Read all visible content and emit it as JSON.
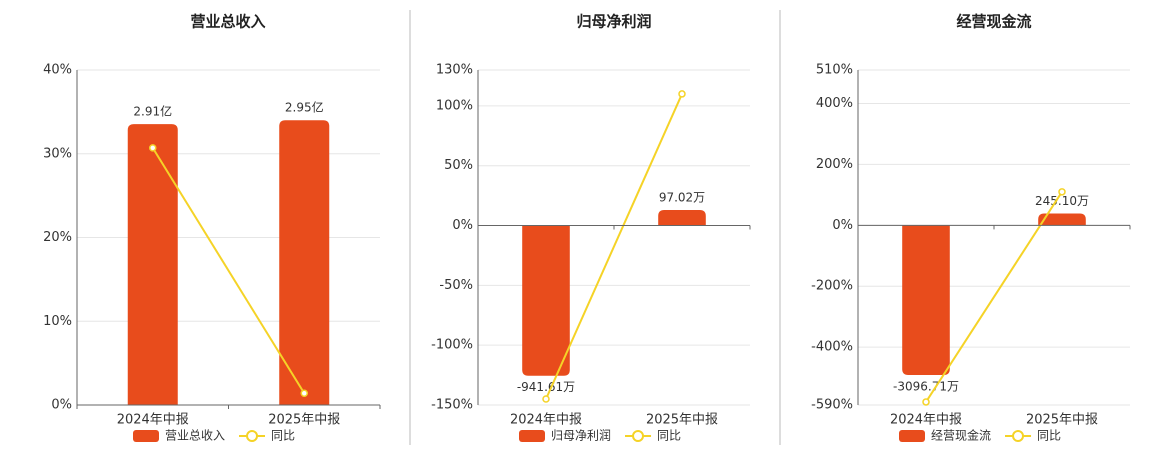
{
  "chart_data": [
    {
      "type": "bar",
      "title": "营业总收入",
      "categories": [
        "2024年中报",
        "2025年中报"
      ],
      "series": [
        {
          "name": "营业总收入",
          "color": "#e84c1c",
          "axis": "y2",
          "values": [
            2.91,
            2.95
          ],
          "value_labels": [
            "2.91亿",
            "2.95亿"
          ]
        },
        {
          "name": "同比",
          "type": "line",
          "color": "#f5d327",
          "values": [
            30.7,
            1.4
          ]
        }
      ],
      "ylim": [
        0,
        40
      ],
      "yticks": [
        {
          "value": 0,
          "label": "0%"
        },
        {
          "value": 10,
          "label": "10%"
        },
        {
          "value": 20,
          "label": "20%"
        },
        {
          "value": 30,
          "label": "30%"
        },
        {
          "value": 40,
          "label": "40%"
        }
      ],
      "y2lim": [
        0,
        3.47
      ],
      "grid": true
    },
    {
      "type": "bar",
      "title": "归母净利润",
      "categories": [
        "2024年中报",
        "2025年中报"
      ],
      "series": [
        {
          "name": "归母净利润",
          "color": "#e84c1c",
          "axis": "y2",
          "values": [
            -941.61,
            97.02
          ],
          "value_labels": [
            "-941.61万",
            "97.02万"
          ]
        },
        {
          "name": "同比",
          "type": "line",
          "color": "#f5d327",
          "values": [
            -145,
            110
          ]
        }
      ],
      "ylim": [
        -150,
        130
      ],
      "yticks": [
        {
          "value": -150,
          "label": "-150%"
        },
        {
          "value": -100,
          "label": "-100%"
        },
        {
          "value": -50,
          "label": "-50%"
        },
        {
          "value": 0,
          "label": "0%"
        },
        {
          "value": 50,
          "label": "50%"
        },
        {
          "value": 100,
          "label": "100%"
        },
        {
          "value": 130,
          "label": "130%"
        }
      ],
      "y2lim": [
        -1125,
        975
      ],
      "grid": true
    },
    {
      "type": "bar",
      "title": "经营现金流",
      "categories": [
        "2024年中报",
        "2025年中报"
      ],
      "series": [
        {
          "name": "经营现金流",
          "color": "#e84c1c",
          "axis": "y2",
          "values": [
            -3096.71,
            245.1
          ],
          "value_labels": [
            "-3096.71万",
            "245.10万"
          ]
        },
        {
          "name": "同比",
          "type": "line",
          "color": "#f5d327",
          "values": [
            -580,
            110
          ]
        }
      ],
      "ylim": [
        -590,
        510
      ],
      "yticks": [
        {
          "value": -590,
          "label": "-590%"
        },
        {
          "value": -400,
          "label": "-400%"
        },
        {
          "value": -200,
          "label": "-200%"
        },
        {
          "value": 0,
          "label": "0%"
        },
        {
          "value": 200,
          "label": "200%"
        },
        {
          "value": 400,
          "label": "400%"
        },
        {
          "value": 510,
          "label": "510%"
        }
      ],
      "y2lim": [
        -3717,
        3213
      ],
      "grid": true
    }
  ]
}
